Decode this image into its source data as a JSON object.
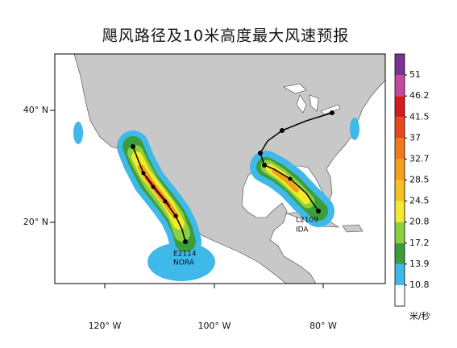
{
  "title": "飓风路径及10米高度最大风速预报",
  "map": {
    "lat_labels": [
      "40° N",
      "20° N"
    ],
    "lon_labels": [
      "120° W",
      "100° W",
      "80° W"
    ],
    "storms": [
      {
        "id": "E2114",
        "name": "NORA"
      },
      {
        "id": "L2109",
        "name": "IDA"
      }
    ]
  },
  "colorbar": {
    "levels": [
      10.8,
      13.9,
      17.2,
      20.8,
      24.5,
      28.5,
      32.7,
      37,
      41.5,
      46.2,
      51
    ],
    "colors": [
      "#ffffff",
      "#3fb8ea",
      "#3a9e3a",
      "#8ccf3f",
      "#f2ea2a",
      "#f6c21f",
      "#f5a01c",
      "#f07a1a",
      "#e8491b",
      "#d61a1f",
      "#c44aa0",
      "#7b3294"
    ],
    "unit": "米/秒"
  }
}
